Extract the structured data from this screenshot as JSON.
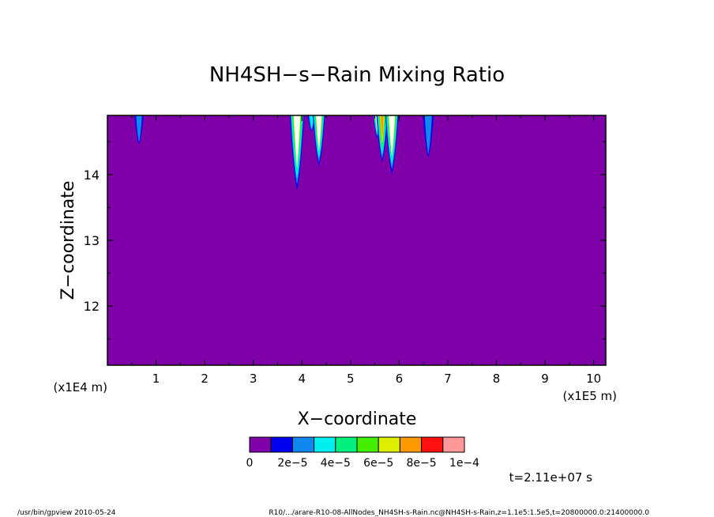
{
  "chart_data": {
    "type": "heatmap",
    "title": "NH4SH−s−Rain Mixing Ratio",
    "xlabel": "X−coordinate",
    "ylabel": "Z−coordinate",
    "x_unit_left": "(x1E4 m)",
    "x_unit_right": "(x1E5 m)",
    "x_range": [
      0,
      10.25
    ],
    "y_range": [
      11.1,
      14.9
    ],
    "x_ticks": [
      "1",
      "2",
      "3",
      "4",
      "5",
      "6",
      "7",
      "8",
      "9",
      "10"
    ],
    "y_ticks": [
      "12",
      "13",
      "14"
    ],
    "background_value": 0,
    "background_color": "#7f00a8",
    "colorbar": {
      "colors": [
        "#7f00a8",
        "#0000ee",
        "#1188f0",
        "#00f0f0",
        "#00f080",
        "#44ee00",
        "#ddee00",
        "#ff9900",
        "#ff1111",
        "#ff9999"
      ],
      "labels": [
        "0",
        "2e−5",
        "4e−5",
        "6e−5",
        "8e−5",
        "1e−4"
      ]
    },
    "features": [
      {
        "x": 0.65,
        "z_bottom": 14.45,
        "peak_level": 3
      },
      {
        "x": 3.9,
        "z_bottom": 13.75,
        "peak_level": 10
      },
      {
        "x": 4.2,
        "z_bottom": 14.65,
        "peak_level": 4
      },
      {
        "x": 4.35,
        "z_bottom": 14.12,
        "peak_level": 10
      },
      {
        "x": 5.55,
        "z_bottom": 14.55,
        "peak_level": 10
      },
      {
        "x": 5.65,
        "z_bottom": 14.18,
        "peak_level": 8
      },
      {
        "x": 5.85,
        "z_bottom": 14.0,
        "peak_level": 10
      },
      {
        "x": 6.6,
        "z_bottom": 14.25,
        "peak_level": 3
      }
    ],
    "time_label": "t=2.11e+07 s"
  },
  "footer": {
    "program": "/usr/bin/gpview  2010-05-24",
    "source": "R10/.../arare-R10-08-AllNodes_NH4SH-s-Rain.nc@NH4SH-s-Rain,z=1.1e5:1.5e5,t=20800000.0:21400000.0"
  }
}
